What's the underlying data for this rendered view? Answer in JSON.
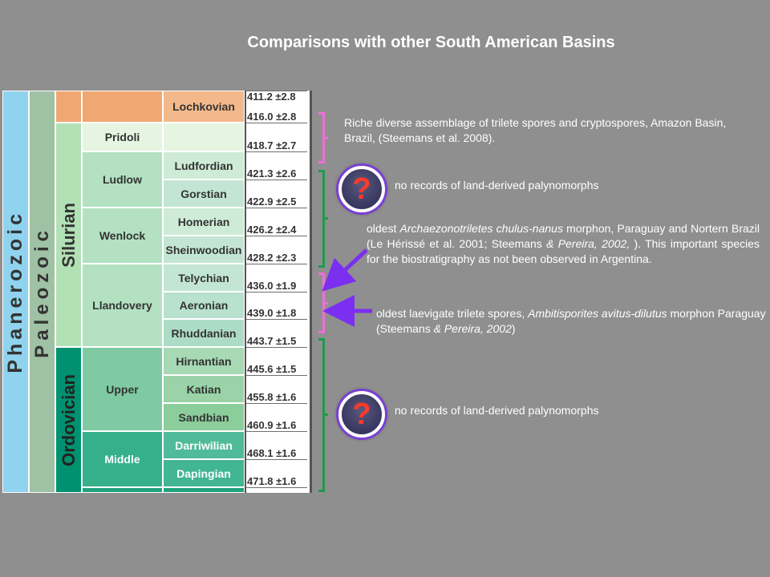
{
  "title": "Comparisons with other South American Basins",
  "chart": {
    "eon": "Phanerozoic",
    "era": "Paleozoic",
    "periods": [
      {
        "name": "Silurian"
      },
      {
        "name": "Ordovician"
      }
    ],
    "series": [
      {
        "name": ""
      },
      {
        "name": "Pridoli"
      },
      {
        "name": "Ludlow"
      },
      {
        "name": "Wenlock"
      },
      {
        "name": "Llandovery"
      },
      {
        "name": "Upper"
      },
      {
        "name": "Middle"
      }
    ],
    "stages": [
      {
        "name": "Lochkovian"
      },
      {
        "name": ""
      },
      {
        "name": "Ludfordian"
      },
      {
        "name": "Gorstian"
      },
      {
        "name": "Homerian"
      },
      {
        "name": "Sheinwoodian"
      },
      {
        "name": "Telychian"
      },
      {
        "name": "Aeronian"
      },
      {
        "name": "Rhuddanian"
      },
      {
        "name": "Hirnantian"
      },
      {
        "name": "Katian"
      },
      {
        "name": "Sandbian"
      },
      {
        "name": "Darriwilian"
      },
      {
        "name": "Dapingian"
      }
    ],
    "ages": [
      "411.2 ±2.8",
      "416.0 ±2.8",
      "418.7 ±2.7",
      "421.3 ±2.6",
      "422.9 ±2.5",
      "426.2 ±2.4",
      "428.2 ±2.3",
      "436.0 ±1.9",
      "439.0 ±1.8",
      "443.7 ±1.5",
      "445.6 ±1.5",
      "455.8 ±1.6",
      "460.9 ±1.6",
      "468.1 ±1.6",
      "471.8 ±1.6"
    ],
    "colors": {
      "eon": "#8fd3ee",
      "era": "#9fc1a4",
      "silurian": "#b3e1b6",
      "ordovician": "#009270",
      "devonian": "#f1a772",
      "pridoli": "#e6f5e1",
      "ludlow_wenlock_llandovery": "#b3e1c2",
      "upper_ord": "#7fcaa3",
      "middle_ord": "#35b08b"
    }
  },
  "annotations": {
    "amazon": "Riche diverse assemblage of trilete spores and cryptospores, Amazon Basin, Brazil, (Steemans et al. 2008).",
    "no_records_1": "no records of land-derived palynomorphs",
    "arch_1": "oldest ",
    "arch_species": "Archaezonotriletes chulus-nanus",
    "arch_2": " morphon, Paraguay and Nortern Brazil (Le Hérissé et al. 2001; Steemans ",
    "arch_ref": "& Pereira, 2002,",
    "arch_3": " ). This important species for the biostratigraphy as not been observed in Argentina.",
    "laev_1": "oldest laevigate trilete spores, ",
    "laev_species": "Ambitisporites avitus-dilutus",
    "laev_2": " morphon Paraguay (Steemans ",
    "laev_ref": "& Pereira, 2002",
    "laev_3": ")",
    "no_records_2": "no records of land-derived palynomorphs",
    "question_mark": "?"
  }
}
